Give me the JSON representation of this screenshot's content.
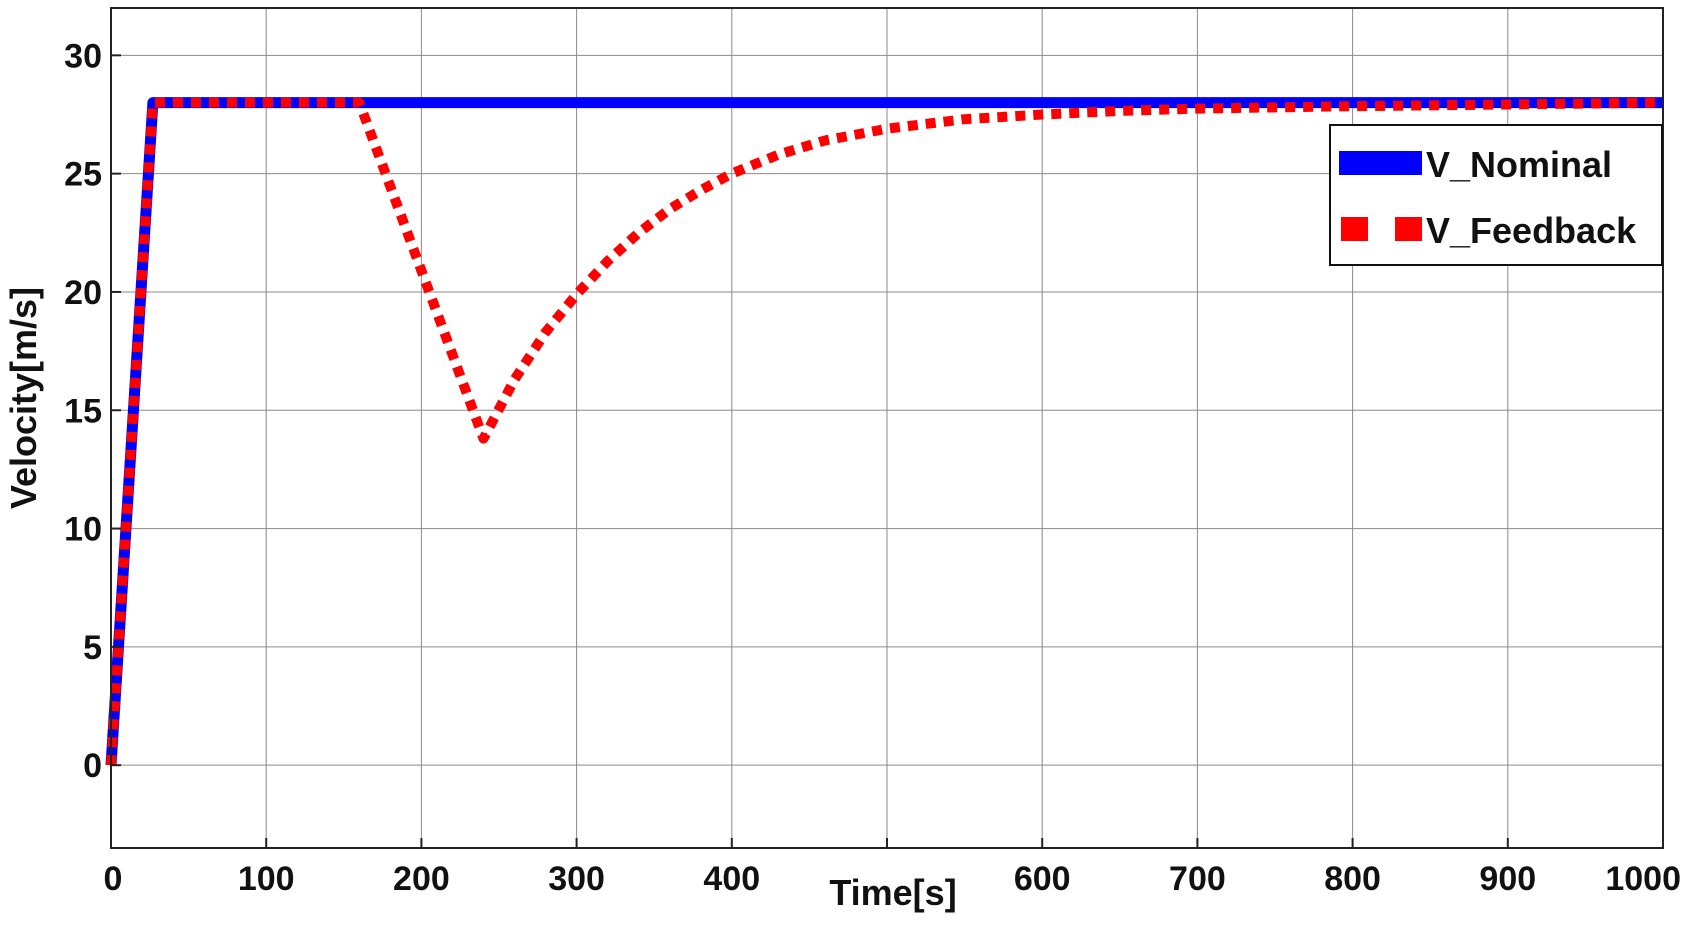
{
  "chart_data": {
    "type": "line",
    "title": "",
    "xlabel": "Time[s]",
    "ylabel": "Velocity[m/s]",
    "xlim": [
      0,
      1000
    ],
    "ylim": [
      -3.5,
      32
    ],
    "xticks": [
      0,
      100,
      200,
      300,
      400,
      500,
      600,
      700,
      800,
      900,
      1000
    ],
    "xtick_labels": [
      "0",
      "100",
      "200",
      "300",
      "400",
      "",
      "600",
      "700",
      "800",
      "900",
      "1000"
    ],
    "yticks": [
      0,
      5,
      10,
      15,
      20,
      25,
      30
    ],
    "ytick_labels": [
      "0",
      "5",
      "10",
      "15",
      "20",
      "25",
      "30"
    ],
    "grid": true,
    "legend_position": "top-right",
    "series": [
      {
        "name": "V_Nominal",
        "color": "#0000ff",
        "style": "solid",
        "x": [
          0,
          27,
          1000
        ],
        "y": [
          0,
          28,
          28
        ]
      },
      {
        "name": "V_Feedback",
        "color": "#ff0000",
        "style": "dotted",
        "x": [
          0,
          27,
          160,
          240,
          260,
          280,
          300,
          320,
          340,
          360,
          380,
          400,
          430,
          460,
          500,
          550,
          600,
          650,
          700,
          800,
          900,
          1000
        ],
        "y": [
          0,
          28,
          28,
          13.8,
          16.3,
          18.3,
          19.9,
          21.3,
          22.5,
          23.5,
          24.3,
          25.0,
          25.8,
          26.4,
          26.9,
          27.3,
          27.5,
          27.65,
          27.75,
          27.85,
          27.92,
          28
        ]
      }
    ]
  }
}
